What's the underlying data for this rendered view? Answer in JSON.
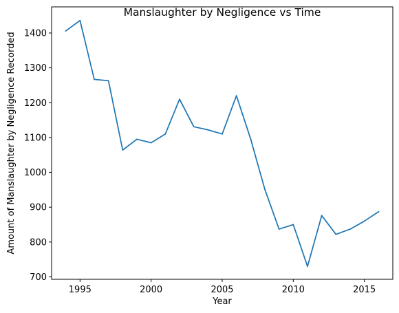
{
  "chart_data": {
    "type": "line",
    "title": "Manslaughter by Negligence vs Time",
    "xlabel": "Year",
    "ylabel": "Amount of Manslaughter by Negligence Recorded",
    "xlim": [
      1993,
      2017
    ],
    "ylim": [
      693,
      1475
    ],
    "x_ticks": [
      1995,
      2000,
      2005,
      2010,
      2015
    ],
    "y_ticks": [
      700,
      800,
      900,
      1000,
      1100,
      1200,
      1300,
      1400
    ],
    "grid": false,
    "legend": "none",
    "series": [
      {
        "color": "#1f77b4",
        "x": [
          1994,
          1995,
          1996,
          1997,
          1998,
          1999,
          2000,
          2001,
          2002,
          2003,
          2004,
          2005,
          2006,
          2007,
          2008,
          2009,
          2010,
          2011,
          2012,
          2013,
          2014,
          2015,
          2016
        ],
        "values": [
          1406,
          1436,
          1267,
          1263,
          1064,
          1095,
          1085,
          1110,
          1210,
          1131,
          1122,
          1110,
          1220,
          1096,
          951,
          837,
          850,
          730,
          876,
          822,
          837,
          860,
          887
        ]
      }
    ]
  }
}
